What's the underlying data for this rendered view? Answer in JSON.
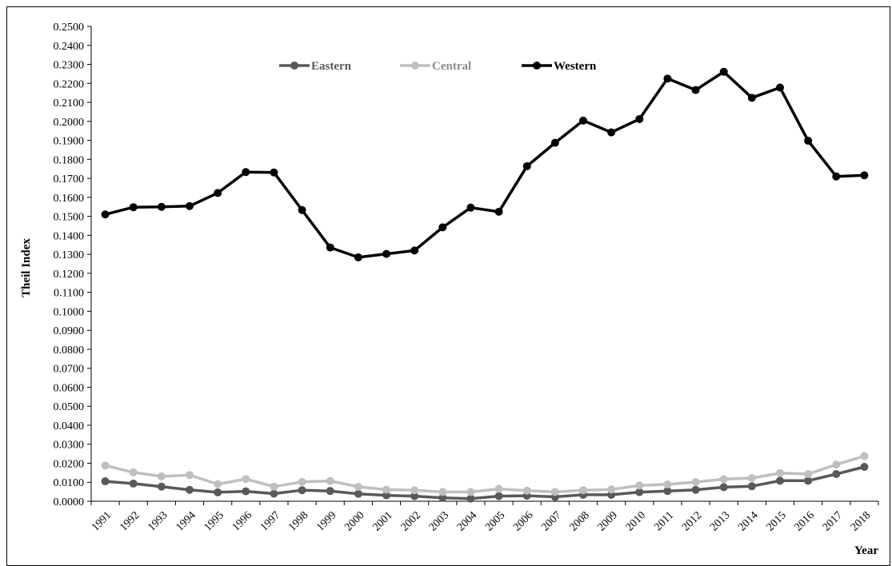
{
  "chart_data": {
    "type": "line",
    "ylabel": "Theil Index",
    "xlabel": "Year",
    "ylim": [
      0,
      0.25
    ],
    "ytick_step": 0.01,
    "grid": false,
    "legend_position": "top-center",
    "x": [
      1991,
      1992,
      1993,
      1994,
      1995,
      1996,
      1997,
      1998,
      1999,
      2000,
      2001,
      2002,
      2003,
      2004,
      2005,
      2006,
      2007,
      2008,
      2009,
      2010,
      2011,
      2012,
      2013,
      2014,
      2015,
      2016,
      2017,
      2018
    ],
    "series": [
      {
        "name": "Eastern",
        "color": "#595959",
        "values": [
          0.0105,
          0.0093,
          0.0077,
          0.006,
          0.0047,
          0.0052,
          0.004,
          0.0058,
          0.0054,
          0.0039,
          0.0031,
          0.0027,
          0.0018,
          0.0014,
          0.0027,
          0.0029,
          0.0023,
          0.0034,
          0.0034,
          0.0048,
          0.0054,
          0.006,
          0.0074,
          0.0079,
          0.0108,
          0.0108,
          0.0143,
          0.0181
        ]
      },
      {
        "name": "Central",
        "color": "#bfbfbf",
        "values": [
          0.0188,
          0.0152,
          0.0131,
          0.0138,
          0.009,
          0.0117,
          0.0077,
          0.0102,
          0.0107,
          0.0076,
          0.0061,
          0.0058,
          0.0049,
          0.0049,
          0.0065,
          0.0056,
          0.0049,
          0.0058,
          0.0062,
          0.0083,
          0.0089,
          0.0101,
          0.0116,
          0.0122,
          0.0148,
          0.0143,
          0.0193,
          0.0238
        ]
      },
      {
        "name": "Western",
        "color": "#000000",
        "values": [
          0.151,
          0.1548,
          0.155,
          0.1554,
          0.1623,
          0.1733,
          0.1731,
          0.1533,
          0.1336,
          0.1284,
          0.1302,
          0.132,
          0.1442,
          0.1546,
          0.1524,
          0.1764,
          0.1887,
          0.2004,
          0.1942,
          0.2012,
          0.2225,
          0.2165,
          0.2261,
          0.2124,
          0.2178,
          0.1898,
          0.171,
          0.1716
        ]
      }
    ]
  }
}
